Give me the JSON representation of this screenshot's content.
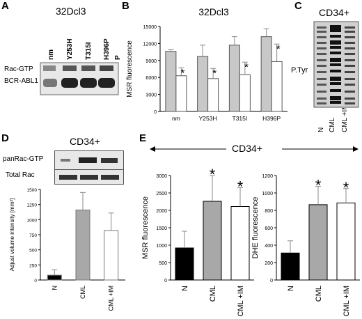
{
  "panel_letters": {
    "a": "A",
    "b": "B",
    "c": "C",
    "d": "D",
    "e": "E"
  },
  "panel_a": {
    "title": "32Dcl3",
    "lane_labels": [
      "nm",
      "Y253H",
      "T315I",
      "H396P",
      "P"
    ],
    "row_labels": [
      "Rac-GTP",
      "BCR-ABL1"
    ]
  },
  "panel_c": {
    "title": "CD34+",
    "band_label": "P.Tyr",
    "lane_labels": [
      "N",
      "CML",
      "CML +IM"
    ]
  },
  "panel_d": {
    "title": "CD34+",
    "row_labels": [
      "panRac-GTP",
      "Total Rac"
    ]
  },
  "panel_e": {
    "title": "CD34+"
  },
  "chart_data": [
    {
      "id": "B",
      "type": "bar",
      "title": "32Dcl3",
      "ylabel": "MSR fluorescence",
      "ylim": [
        0,
        15000
      ],
      "yticks": [
        0,
        3000,
        6000,
        9000,
        12000,
        15000
      ],
      "categories": [
        "nm",
        "Y253H",
        "T315I",
        "H396P"
      ],
      "series": [
        {
          "color": "#c8c8c8",
          "values": [
            10600,
            9700,
            11700,
            13200
          ],
          "errors": [
            300,
            2000,
            1500,
            1400
          ]
        },
        {
          "color": "#ffffff",
          "values": [
            6300,
            5800,
            6500,
            8800
          ],
          "errors": [
            1400,
            1800,
            2200,
            3100
          ]
        }
      ],
      "annotations": [
        "*",
        "*",
        "*",
        "*"
      ]
    },
    {
      "id": "D",
      "type": "bar",
      "ylabel": "Adjust volume intensity [mm²]",
      "ylim": [
        0,
        1500
      ],
      "yticks": [
        0,
        250,
        500,
        750,
        1000,
        1250,
        1500
      ],
      "categories": [
        "N",
        "CML",
        "CML +IM"
      ],
      "values": [
        80,
        1160,
        820
      ],
      "errors": [
        90,
        290,
        290
      ],
      "colors": [
        "#000000",
        "#a8a8a8",
        "#ffffff"
      ]
    },
    {
      "id": "E1",
      "type": "bar",
      "ylabel": "MSR fluorescence",
      "ylim": [
        0,
        3000
      ],
      "yticks": [
        0,
        500,
        1000,
        1500,
        2000,
        2500,
        3000
      ],
      "categories": [
        "N",
        "CML",
        "CML +IM"
      ],
      "values": [
        920,
        2260,
        2110
      ],
      "errors": [
        480,
        740,
        540
      ],
      "colors": [
        "#000000",
        "#a8a8a8",
        "#ffffff"
      ],
      "annotations": [
        "",
        "*",
        "*"
      ]
    },
    {
      "id": "E2",
      "type": "bar",
      "ylabel": "DHE fluorescence",
      "ylim": [
        0,
        1200
      ],
      "yticks": [
        0,
        200,
        400,
        600,
        800,
        1000,
        1200
      ],
      "categories": [
        "N",
        "CML",
        "CML +IM"
      ],
      "values": [
        310,
        865,
        885
      ],
      "errors": [
        140,
        210,
        165
      ],
      "colors": [
        "#000000",
        "#a8a8a8",
        "#ffffff"
      ],
      "annotations": [
        "",
        "*",
        "*"
      ]
    }
  ]
}
